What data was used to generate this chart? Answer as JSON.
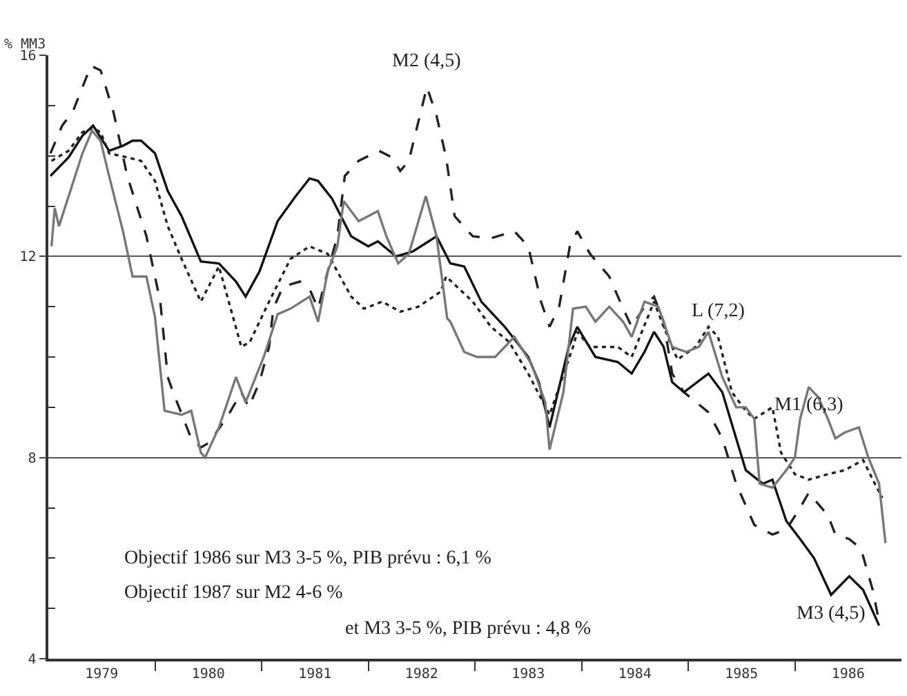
{
  "chart_data": {
    "type": "line",
    "ylabel": "% MM3",
    "xlim": [
      1979,
      1987
    ],
    "ylim": [
      4,
      16
    ],
    "xticks": [
      {
        "value": 1979.5,
        "label": "1979"
      },
      {
        "value": 1980.5,
        "label": "1980"
      },
      {
        "value": 1981.5,
        "label": "1981"
      },
      {
        "value": 1982.5,
        "label": "1982"
      },
      {
        "value": 1983.5,
        "label": "1983"
      },
      {
        "value": 1984.5,
        "label": "1984"
      },
      {
        "value": 1985.5,
        "label": "1985"
      },
      {
        "value": 1986.5,
        "label": "1986"
      },
      {
        "value": 1980,
        "label": null
      },
      {
        "value": 1981,
        "label": null
      },
      {
        "value": 1982,
        "label": null
      },
      {
        "value": 1983,
        "label": null
      },
      {
        "value": 1984,
        "label": null
      },
      {
        "value": 1985,
        "label": null
      },
      {
        "value": 1986,
        "label": null
      }
    ],
    "yticks": [
      4,
      8,
      12,
      16,
      {
        "value": 5,
        "label": null
      },
      {
        "value": 6,
        "label": null
      },
      {
        "value": 7,
        "label": null
      },
      {
        "value": 9,
        "label": null
      },
      {
        "value": 10,
        "label": null
      },
      {
        "value": 11,
        "label": null
      },
      {
        "value": 13,
        "label": null
      },
      {
        "value": 14,
        "label": null
      },
      {
        "value": 15,
        "label": null
      }
    ],
    "grid": "y",
    "marker": "none",
    "series": [
      {
        "color": "#222222",
        "line_style": "dashed",
        "x": [
          1979.02,
          1979.13,
          1979.23,
          1979.4,
          1979.49,
          1979.61,
          1979.74,
          1979.92,
          1980.05,
          1980.12,
          1980.17,
          1980.34,
          1980.43,
          1980.51,
          1980.69,
          1980.81,
          1980.88,
          1980.98,
          1981.07,
          1981.11,
          1981.2,
          1981.36,
          1981.46,
          1981.53,
          1981.62,
          1981.71,
          1981.78,
          1981.91,
          1982.1,
          1982.22,
          1982.3,
          1982.38,
          1982.55,
          1982.64,
          1982.73,
          1982.81,
          1982.98,
          1983.15,
          1983.37,
          1983.5,
          1983.62,
          1983.7,
          1983.79,
          1983.89,
          1983.96,
          1984.08,
          1984.26,
          1984.39,
          1984.47,
          1984.59,
          1984.68,
          1984.77,
          1984.85,
          1984.96,
          1985.19,
          1985.32,
          1985.45,
          1985.62,
          1985.79,
          1985.92,
          1986.05,
          1986.13,
          1986.31,
          1986.38,
          1986.51,
          1986.62,
          1986.73,
          1986.79
        ],
        "values": [
          14.05,
          14.6,
          14.88,
          15.79,
          15.7,
          14.88,
          13.6,
          12.4,
          11.1,
          9.6,
          9.3,
          8.38,
          8.2,
          8.3,
          8.85,
          9.3,
          9.0,
          9.5,
          10.2,
          10.96,
          11.4,
          11.5,
          11.3,
          10.96,
          11.7,
          12.4,
          13.6,
          13.9,
          14.1,
          13.97,
          13.7,
          13.9,
          15.37,
          14.8,
          13.97,
          12.8,
          12.4,
          12.36,
          12.5,
          12.2,
          11.1,
          10.6,
          11.0,
          12.2,
          12.5,
          12.05,
          11.6,
          10.96,
          10.6,
          11.0,
          11.2,
          10.7,
          9.67,
          9.3,
          8.9,
          8.38,
          7.48,
          6.66,
          6.47,
          6.57,
          7.0,
          7.3,
          6.85,
          6.47,
          6.38,
          6.19,
          5.37,
          4.74
        ]
      },
      {
        "color": "#111111",
        "line_style": "solid",
        "x": [
          1979.02,
          1979.19,
          1979.32,
          1979.42,
          1979.57,
          1979.7,
          1979.79,
          1979.87,
          1980.0,
          1980.12,
          1980.25,
          1980.43,
          1980.6,
          1980.76,
          1980.85,
          1980.98,
          1981.15,
          1981.32,
          1981.45,
          1981.53,
          1981.66,
          1981.84,
          1982.0,
          1982.09,
          1982.26,
          1982.42,
          1982.64,
          1982.77,
          1982.9,
          1983.06,
          1983.28,
          1983.5,
          1983.6,
          1983.7,
          1983.88,
          1983.96,
          1984.13,
          1984.34,
          1984.47,
          1984.59,
          1984.68,
          1984.77,
          1984.85,
          1984.96,
          1985.19,
          1985.32,
          1985.45,
          1985.54,
          1985.7,
          1985.79,
          1985.92,
          1986.05,
          1986.18,
          1986.34,
          1986.51,
          1986.64,
          1986.79
        ],
        "values": [
          13.6,
          13.97,
          14.4,
          14.6,
          14.1,
          14.2,
          14.3,
          14.3,
          14.05,
          13.3,
          12.8,
          11.9,
          11.86,
          11.5,
          11.2,
          11.7,
          12.7,
          13.2,
          13.55,
          13.5,
          13.15,
          12.4,
          12.2,
          12.3,
          12.0,
          12.1,
          12.4,
          11.86,
          11.8,
          11.1,
          10.6,
          10.0,
          9.5,
          8.6,
          10.2,
          10.6,
          10.0,
          9.9,
          9.67,
          10.1,
          10.5,
          10.2,
          9.5,
          9.3,
          9.67,
          9.3,
          8.38,
          7.75,
          7.48,
          7.56,
          6.74,
          6.38,
          6.0,
          5.27,
          5.64,
          5.37,
          4.66
        ]
      },
      {
        "color": "#222222",
        "line_style": "dotted",
        "x": [
          1979.03,
          1979.19,
          1979.32,
          1979.42,
          1979.49,
          1979.57,
          1979.74,
          1979.87,
          1980.0,
          1980.12,
          1980.25,
          1980.43,
          1980.6,
          1980.81,
          1980.89,
          1981.07,
          1981.27,
          1981.45,
          1981.62,
          1981.84,
          1981.96,
          1982.13,
          1982.3,
          1982.47,
          1982.68,
          1982.73,
          1982.98,
          1983.15,
          1983.32,
          1983.5,
          1983.7,
          1983.92,
          1983.96,
          1984.08,
          1984.34,
          1984.47,
          1984.68,
          1984.77,
          1984.9,
          1985.07,
          1985.19,
          1985.28,
          1985.41,
          1985.54,
          1985.62,
          1985.79,
          1985.87,
          1986.0,
          1986.13,
          1986.31,
          1986.47,
          1986.64,
          1986.75,
          1986.82
        ],
        "values": [
          13.9,
          14.1,
          14.47,
          14.55,
          14.47,
          14.05,
          13.97,
          13.9,
          13.5,
          12.6,
          11.95,
          11.1,
          11.8,
          10.2,
          10.3,
          11.1,
          11.95,
          12.2,
          12.05,
          11.2,
          10.96,
          11.1,
          10.9,
          11.0,
          11.3,
          11.6,
          11.1,
          10.6,
          10.3,
          9.67,
          8.85,
          10.2,
          10.5,
          10.2,
          10.2,
          10.0,
          11.1,
          10.6,
          9.95,
          10.2,
          10.6,
          10.4,
          9.3,
          8.93,
          8.77,
          9.0,
          8.1,
          7.67,
          7.56,
          7.67,
          7.75,
          7.95,
          7.48,
          7.2
        ]
      },
      {
        "color": "#777777",
        "line_style": "solid",
        "x": [
          1979.03,
          1979.06,
          1979.1,
          1979.32,
          1979.41,
          1979.49,
          1979.57,
          1979.7,
          1979.79,
          1979.92,
          1980.0,
          1980.09,
          1980.25,
          1980.34,
          1980.43,
          1980.47,
          1980.6,
          1980.76,
          1980.85,
          1981.02,
          1981.15,
          1981.27,
          1981.45,
          1981.53,
          1981.62,
          1981.71,
          1981.77,
          1981.91,
          1982.09,
          1982.17,
          1982.28,
          1982.38,
          1982.54,
          1982.64,
          1982.74,
          1982.77,
          1982.9,
          1983.02,
          1983.19,
          1983.37,
          1983.53,
          1983.66,
          1983.7,
          1983.83,
          1983.92,
          1984.04,
          1984.13,
          1984.26,
          1984.39,
          1984.47,
          1984.59,
          1984.72,
          1984.85,
          1984.98,
          1985.1,
          1985.19,
          1985.32,
          1985.45,
          1985.54,
          1985.62,
          1985.67,
          1985.79,
          1985.92,
          1986.0,
          1986.05,
          1986.13,
          1986.22,
          1986.31,
          1986.38,
          1986.47,
          1986.6,
          1986.69,
          1986.79,
          1986.85
        ],
        "values": [
          12.2,
          12.96,
          12.6,
          14.05,
          14.5,
          14.3,
          13.6,
          12.5,
          11.6,
          11.6,
          10.8,
          8.93,
          8.85,
          8.93,
          8.1,
          8.0,
          8.6,
          9.6,
          9.1,
          10.0,
          10.85,
          10.96,
          11.2,
          10.7,
          11.7,
          12.2,
          13.1,
          12.7,
          12.9,
          12.4,
          11.86,
          12.05,
          13.2,
          12.4,
          10.77,
          10.7,
          10.1,
          10.0,
          10.0,
          10.4,
          9.86,
          9.1,
          8.16,
          9.3,
          10.96,
          11.0,
          10.7,
          11.0,
          10.7,
          10.4,
          11.1,
          11.0,
          10.2,
          10.1,
          10.2,
          10.5,
          9.6,
          9.0,
          9.0,
          8.77,
          7.48,
          7.4,
          7.75,
          8.0,
          8.77,
          9.4,
          9.2,
          8.77,
          8.38,
          8.5,
          8.6,
          8.0,
          7.48,
          6.3
        ]
      }
    ],
    "annotations": [
      {
        "text": "M2 (4,5)",
        "x": 1982.55,
        "y": 15.37
      },
      {
        "text": "L (7,2)",
        "x": 1985.28,
        "y": 10.4
      },
      {
        "text": "M1 (6,3)",
        "x": 1986.13,
        "y": 9.4
      },
      {
        "text": "M3 (4,5)",
        "x": 1986.34,
        "y": 5.27
      },
      "Objectif 1986 sur M3 3-5 %, PIB prévu : 6,1 %",
      "Objectif 1987 sur M2 4-6 %",
      "et M3 3-5 %, PIB prévu : 4,8 %"
    ]
  }
}
